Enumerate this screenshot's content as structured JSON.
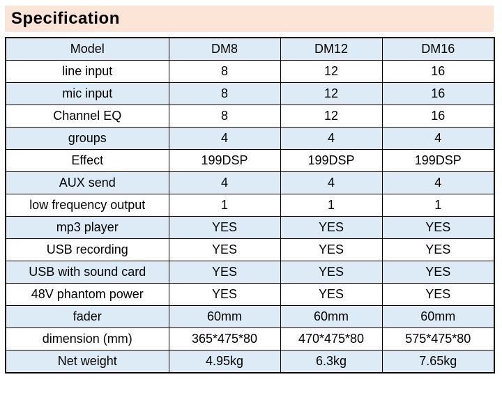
{
  "page": {
    "title": "Specification"
  },
  "colors": {
    "title_bg": "#FCE4D6",
    "stripe_bg": "#DDEBF7",
    "border": "#000000",
    "text": "#000000"
  },
  "table": {
    "header": [
      "Model",
      "DM8",
      "DM12",
      "DM16"
    ],
    "rows": [
      {
        "label": "line input",
        "values": [
          "8",
          "12",
          "16"
        ]
      },
      {
        "label": "mic input",
        "values": [
          "8",
          "12",
          "16"
        ]
      },
      {
        "label": "Channel EQ",
        "values": [
          "8",
          "12",
          "16"
        ]
      },
      {
        "label": "groups",
        "values": [
          "4",
          "4",
          "4"
        ]
      },
      {
        "label": "Effect",
        "values": [
          "199DSP",
          "199DSP",
          "199DSP"
        ]
      },
      {
        "label": "AUX send",
        "values": [
          "4",
          "4",
          "4"
        ]
      },
      {
        "label": "low frequency output",
        "values": [
          "1",
          "1",
          "1"
        ]
      },
      {
        "label": "mp3 player",
        "values": [
          "YES",
          "YES",
          "YES"
        ]
      },
      {
        "label": "USB recording",
        "values": [
          "YES",
          "YES",
          "YES"
        ]
      },
      {
        "label": "USB with sound card",
        "values": [
          "YES",
          "YES",
          "YES"
        ]
      },
      {
        "label": "48V phantom power",
        "values": [
          "YES",
          "YES",
          "YES"
        ]
      },
      {
        "label": "fader",
        "values": [
          "60mm",
          "60mm",
          "60mm"
        ]
      },
      {
        "label": "dimension (mm)",
        "values": [
          "365*475*80",
          "470*475*80",
          "575*475*80"
        ]
      },
      {
        "label": "Net weight",
        "values": [
          "4.95kg",
          "6.3kg",
          "7.65kg"
        ]
      }
    ]
  }
}
